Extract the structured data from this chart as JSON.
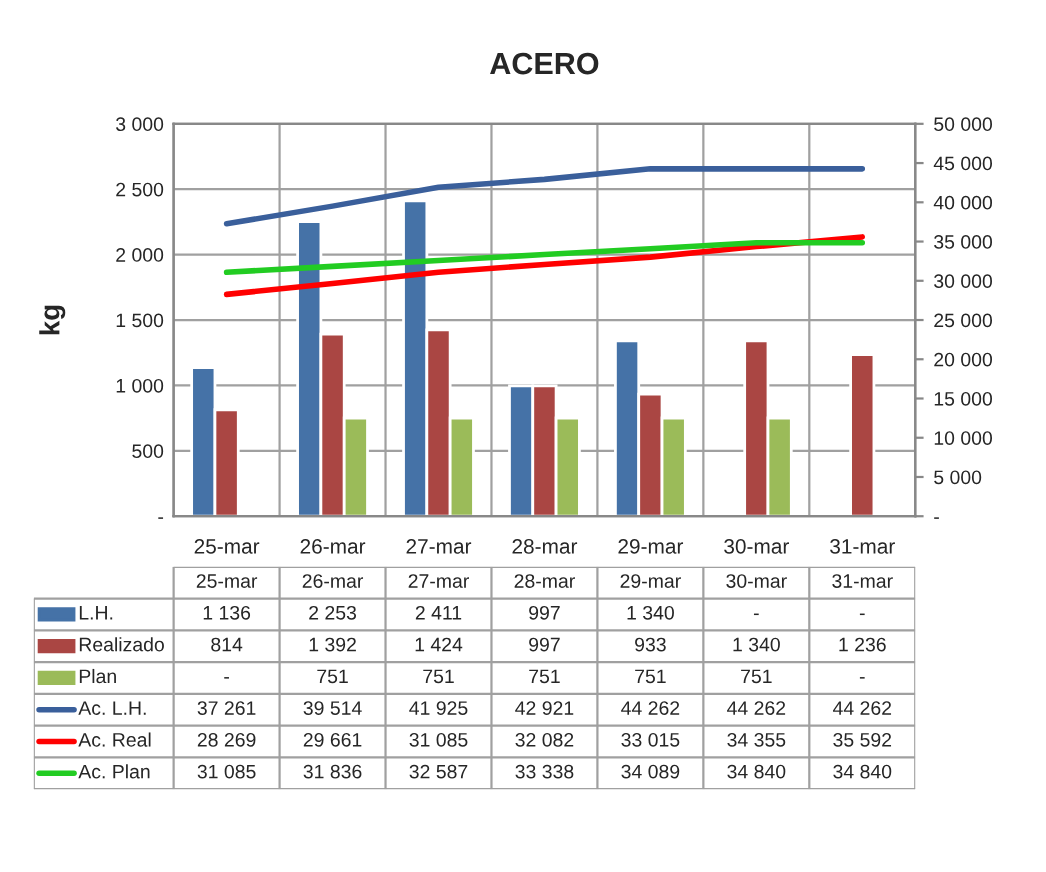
{
  "chart_data": {
    "type": "bar",
    "title": "ACERO",
    "ylabel": "kg",
    "categories": [
      "25-mar",
      "26-mar",
      "27-mar",
      "28-mar",
      "29-mar",
      "30-mar",
      "31-mar"
    ],
    "series": [
      {
        "name": "L.H.",
        "color": "#4572a7",
        "values": [
          1136,
          2253,
          2411,
          997,
          1340,
          null,
          null
        ],
        "value_labels": [
          "1 136",
          "2 253",
          "2 411",
          "997",
          "1 340",
          "-",
          "-"
        ]
      },
      {
        "name": "Realizado",
        "color": "#aa4643",
        "values": [
          814,
          1392,
          1424,
          997,
          933,
          1340,
          1236
        ],
        "value_labels": [
          "814",
          "1 392",
          "1 424",
          "997",
          "933",
          "1 340",
          "1 236"
        ]
      },
      {
        "name": "Plan",
        "color": "#9bbb59",
        "values": [
          null,
          751,
          751,
          751,
          751,
          751,
          null
        ],
        "value_labels": [
          "-",
          "751",
          "751",
          "751",
          "751",
          "751",
          "-"
        ]
      },
      {
        "name": "Ac. L.H.",
        "type": "line",
        "axis": "y2",
        "color": "#3a5f9b",
        "values": [
          37261,
          39514,
          41925,
          42921,
          44262,
          44262,
          44262
        ],
        "value_labels": [
          "37 261",
          "39 514",
          "41 925",
          "42 921",
          "44 262",
          "44 262",
          "44 262"
        ]
      },
      {
        "name": "Ac. Real",
        "type": "line",
        "axis": "y2",
        "color": "#ff0000",
        "values": [
          28269,
          29661,
          31085,
          32082,
          33015,
          34355,
          35592
        ],
        "value_labels": [
          "28 269",
          "29 661",
          "31 085",
          "32 082",
          "33 015",
          "34 355",
          "35 592"
        ]
      },
      {
        "name": "Ac. Plan",
        "type": "line",
        "axis": "y2",
        "color": "#22cc22",
        "values": [
          31085,
          31836,
          32587,
          33338,
          34089,
          34840,
          34840
        ],
        "value_labels": [
          "31 085",
          "31 836",
          "32 587",
          "33 338",
          "34 089",
          "34 840",
          "34 840"
        ]
      }
    ],
    "ylim": [
      0,
      3000
    ],
    "yticks": [
      {
        "value": 0,
        "label": "-"
      },
      500,
      {
        "value": 1000,
        "label": "1 000"
      },
      {
        "value": 1500,
        "label": "1 500"
      },
      {
        "value": 2000,
        "label": "2 000"
      },
      {
        "value": 2500,
        "label": "2 500"
      },
      {
        "value": 3000,
        "label": "3 000"
      }
    ],
    "y2lim": [
      0,
      50000
    ],
    "y2ticks": [
      {
        "value": 0,
        "label": "-"
      },
      {
        "value": 5000,
        "label": "5 000"
      },
      {
        "value": 10000,
        "label": "10 000"
      },
      {
        "value": 15000,
        "label": "15 000"
      },
      {
        "value": 20000,
        "label": "20 000"
      },
      {
        "value": 25000,
        "label": "25 000"
      },
      {
        "value": 30000,
        "label": "30 000"
      },
      {
        "value": 35000,
        "label": "35 000"
      },
      {
        "value": 40000,
        "label": "40 000"
      },
      {
        "value": 45000,
        "label": "45 000"
      },
      {
        "value": 50000,
        "label": "50 000"
      }
    ],
    "grid": true,
    "legend": "bottom"
  }
}
